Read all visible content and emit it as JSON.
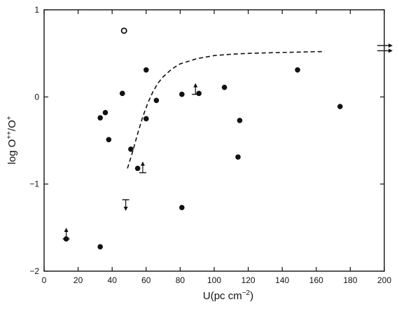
{
  "chart_data": {
    "type": "scatter",
    "title": "",
    "xlabel": "U (pc cm-2)",
    "ylabel": "log O++/O+",
    "xlabel_parts": {
      "main": "U(pc cm",
      "sup": "−2",
      "close": ")"
    },
    "ylabel_parts": {
      "a": "log O",
      "sup1": "++",
      "b": "/O",
      "sup2": "+"
    },
    "xlim": [
      0,
      200
    ],
    "ylim": [
      -2,
      1
    ],
    "x_ticks": [
      "0",
      "20",
      "40",
      "60",
      "80",
      "100",
      "120",
      "140",
      "160",
      "180",
      "200"
    ],
    "y_ticks": [
      "1",
      "0",
      "-1",
      "-2"
    ],
    "grid": false,
    "legend": "none",
    "color": "#111111",
    "points": [
      {
        "x": 13,
        "y": -1.63
      },
      {
        "x": 33,
        "y": -1.72
      },
      {
        "x": 33,
        "y": -0.24
      },
      {
        "x": 36,
        "y": -0.18
      },
      {
        "x": 38,
        "y": -0.49
      },
      {
        "x": 46,
        "y": 0.04
      },
      {
        "x": 51,
        "y": -0.6
      },
      {
        "x": 55,
        "y": -0.82
      },
      {
        "x": 60,
        "y": 0.31
      },
      {
        "x": 60,
        "y": -0.25
      },
      {
        "x": 66,
        "y": -0.04
      },
      {
        "x": 81,
        "y": 0.03
      },
      {
        "x": 81,
        "y": -1.27
      },
      {
        "x": 91,
        "y": 0.04
      },
      {
        "x": 106,
        "y": 0.11
      },
      {
        "x": 114,
        "y": -0.69
      },
      {
        "x": 115,
        "y": -0.27
      },
      {
        "x": 149,
        "y": 0.31
      },
      {
        "x": 174,
        "y": -0.11
      }
    ],
    "open_points": [
      {
        "x": 47,
        "y": 0.76
      }
    ],
    "lower_limits": [
      {
        "x": 13,
        "y": -1.63
      },
      {
        "x": 58,
        "y": -0.87
      },
      {
        "x": 89,
        "y": 0.03
      }
    ],
    "upper_limits": [
      {
        "x": 48,
        "y": -1.18
      }
    ],
    "offscale_right": [
      {
        "y": 0.59
      },
      {
        "y": 0.53
      }
    ],
    "curve": {
      "style": "dashed",
      "x": [
        49,
        52,
        55,
        58,
        61,
        64,
        67,
        70,
        75,
        80,
        90,
        100,
        110,
        120,
        130,
        140,
        150,
        160,
        165
      ],
      "y": [
        -0.82,
        -0.63,
        -0.42,
        -0.23,
        -0.07,
        0.06,
        0.16,
        0.23,
        0.32,
        0.38,
        0.44,
        0.475,
        0.49,
        0.5,
        0.505,
        0.51,
        0.515,
        0.52,
        0.52
      ]
    }
  }
}
